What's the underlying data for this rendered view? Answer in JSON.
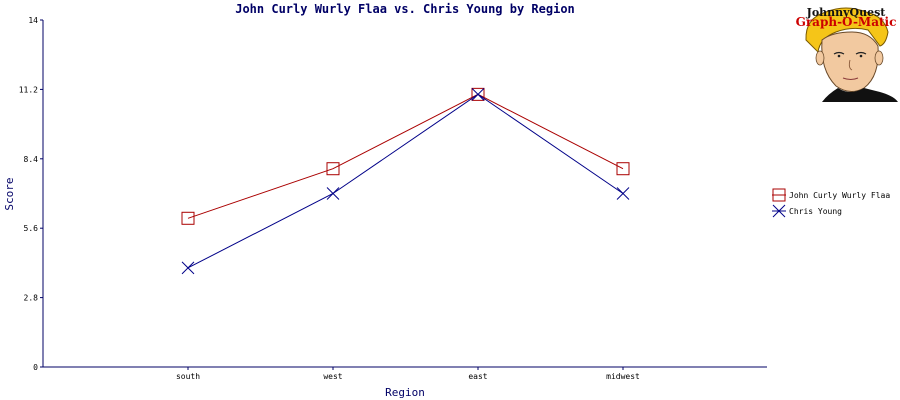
{
  "logo": {
    "line1": "JohnnyQuest",
    "line2": "Graph-O-Matic",
    "icon": "boy-face-icon"
  },
  "chart_data": {
    "type": "line",
    "title": "John Curly Wurly Flaa vs. Chris Young by Region",
    "xlabel": "Region",
    "ylabel": "Score",
    "categories": [
      "south",
      "west",
      "east",
      "midwest"
    ],
    "ylim": [
      0,
      14
    ],
    "yticks": [
      "0",
      "2.8",
      "5.6",
      "8.4",
      "11.2",
      "14"
    ],
    "legend_position": "right",
    "series": [
      {
        "name": "John Curly Wurly Flaa",
        "values": [
          6,
          8,
          11,
          8
        ],
        "color": "#aa0000",
        "marker": "square"
      },
      {
        "name": "Chris Young",
        "values": [
          4,
          7,
          11,
          7
        ],
        "color": "#000088",
        "marker": "x"
      }
    ]
  }
}
